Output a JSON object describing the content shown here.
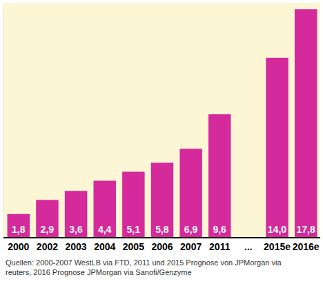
{
  "chart_data": {
    "type": "bar",
    "categories": [
      "2000",
      "2002",
      "2003",
      "2004",
      "2005",
      "2006",
      "2007",
      "2011",
      "...",
      "2015e",
      "2016e"
    ],
    "values": [
      1.8,
      2.9,
      3.6,
      4.4,
      5.1,
      5.8,
      6.9,
      9.6,
      null,
      14.0,
      17.8
    ],
    "value_labels": [
      "1,8",
      "2,9",
      "3,6",
      "4,4",
      "5,1",
      "5,8",
      "6,9",
      "9,6",
      null,
      "14,0",
      "17,8"
    ],
    "color": "#d42a9c",
    "ylim": [
      0,
      18.3
    ],
    "grid": false,
    "data_labels": true,
    "tick_labels": "x",
    "annotation": [
      "Quellen: 2000-2007 WestLB via FTD, 2011 und 2015 Prognose von JPMorgan via",
      "reuters, 2016 Prognose JPMorgan via Sanofi/Genzyme"
    ]
  }
}
